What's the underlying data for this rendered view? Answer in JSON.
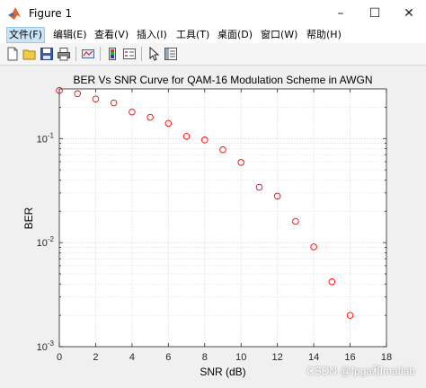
{
  "window": {
    "title": "Figure 1"
  },
  "menu": [
    {
      "label": "文件(F)"
    },
    {
      "label": "编辑(E)"
    },
    {
      "label": "查看(V)"
    },
    {
      "label": "插入(I)"
    },
    {
      "label": "工具(T)"
    },
    {
      "label": "桌面(D)"
    },
    {
      "label": "窗口(W)"
    },
    {
      "label": "帮助(H)"
    }
  ],
  "toolbar": {
    "icons": [
      "new-figure-icon",
      "open-file-icon",
      "save-icon",
      "print-icon",
      "link-plot-icon",
      "toggle-colorbar-icon",
      "insert-legend-icon",
      "edit-plot-arrow-icon",
      "property-inspector-icon"
    ]
  },
  "chart_data": {
    "type": "scatter",
    "title": "BER Vs SNR Curve for QAM-16 Modulation Scheme in AWGN",
    "xlabel": "SNR (dB)",
    "ylabel": "BER",
    "xlim": [
      0,
      18
    ],
    "ylim": [
      0.001,
      0.3
    ],
    "yscale": "log",
    "xticks": [
      "0",
      "2",
      "4",
      "6",
      "8",
      "10",
      "12",
      "14",
      "16",
      "18"
    ],
    "yticks": [
      {
        "base": "10",
        "exp": "-1",
        "value": 0.1
      },
      {
        "base": "10",
        "exp": "-2",
        "value": 0.01
      },
      {
        "base": "10",
        "exp": "-3",
        "value": 0.001
      }
    ],
    "grid": true,
    "marker": "circle",
    "marker_color": "#ff0000",
    "series": [
      {
        "x": [
          0,
          1,
          2,
          3,
          4,
          5,
          6,
          7,
          8,
          9,
          10,
          11,
          12,
          13,
          14,
          15,
          16
        ],
        "y": [
          0.29,
          0.27,
          0.24,
          0.22,
          0.18,
          0.16,
          0.14,
          0.105,
          0.097,
          0.078,
          0.059,
          0.034,
          0.028,
          0.016,
          0.0091,
          0.0042,
          0.002
        ]
      }
    ]
  },
  "watermark": "CSDN @fpga和matlab"
}
